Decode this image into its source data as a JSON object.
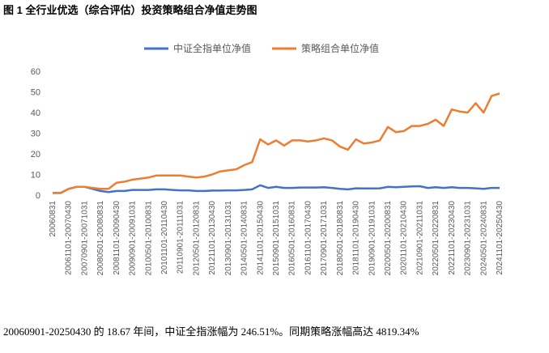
{
  "chart_data": {
    "type": "line",
    "title": "图 1 全行业优选（综合评估）投资策略组合净值走势图",
    "footer": "20060901-20250430 的 18.67 年间，中证全指涨幅为 246.51%。同期策略涨幅高达 4819.34%",
    "categories": [
      "20060831",
      null,
      "20061101-20070430",
      null,
      "20070901-20071031",
      null,
      "20080501-20080831",
      null,
      "20081101-20090430",
      null,
      "20090901-20091031",
      null,
      "20100501-20100831",
      null,
      "20101101-20110430",
      null,
      "20110901-20111031",
      null,
      "20120501-20120831",
      null,
      "20121101-20130430",
      null,
      "20130901-20131031",
      null,
      "20140501-20140831",
      null,
      "20141101-20150430",
      null,
      "20150901-20151031",
      null,
      "20160501-20160831",
      null,
      "20161101-20170430",
      null,
      "20170901-20171031",
      null,
      "20180501-20180831",
      null,
      "20181101-20190430",
      null,
      "20190901-20191031",
      null,
      "20200501-20200831",
      null,
      "20201101-20210430",
      null,
      "20210901-20211031",
      null,
      "20220501-20220831",
      null,
      "20221101-20230430",
      null,
      "20230901-20231031",
      null,
      "20240501-20240831",
      null,
      "20241101-20250430"
    ],
    "series": [
      {
        "name": "中证全指单位净值",
        "color": "#4472c4",
        "values": [
          1,
          1,
          3,
          4,
          4,
          3,
          2,
          1.5,
          2,
          2,
          2.5,
          2.5,
          2.5,
          2.8,
          2.8,
          2.5,
          2.3,
          2.3,
          2,
          2,
          2.2,
          2.2,
          2.3,
          2.3,
          2.5,
          2.8,
          4.8,
          3.5,
          4,
          3.5,
          3.5,
          3.7,
          3.7,
          3.7,
          3.8,
          3.5,
          3,
          2.8,
          3.3,
          3.2,
          3.2,
          3.3,
          4,
          3.8,
          4,
          4.2,
          4.3,
          3.5,
          3.8,
          3.5,
          3.8,
          3.5,
          3.5,
          3.3,
          3,
          3.5,
          3.5
        ]
      },
      {
        "name": "策略组合单位净值",
        "color": "#ed7d31",
        "values": [
          1,
          1,
          3,
          4,
          4,
          3.5,
          3,
          3,
          6,
          6.5,
          7.5,
          8,
          8.5,
          9.5,
          9.5,
          9.5,
          9.5,
          9,
          8.5,
          9,
          10,
          11.5,
          12,
          12.5,
          14.5,
          16,
          27,
          24.5,
          26.5,
          24,
          26.5,
          26.5,
          26,
          26.5,
          27.5,
          26.5,
          23.5,
          22,
          27,
          25,
          25.5,
          26.5,
          33,
          30.5,
          31,
          33.5,
          33.5,
          34.5,
          36.5,
          33.5,
          41.5,
          40.5,
          40,
          44.5,
          40,
          48,
          49.2
        ]
      }
    ],
    "ylim": [
      0,
      60
    ],
    "yticks": [
      0,
      10,
      20,
      30,
      40,
      50,
      60
    ],
    "grid": false
  }
}
